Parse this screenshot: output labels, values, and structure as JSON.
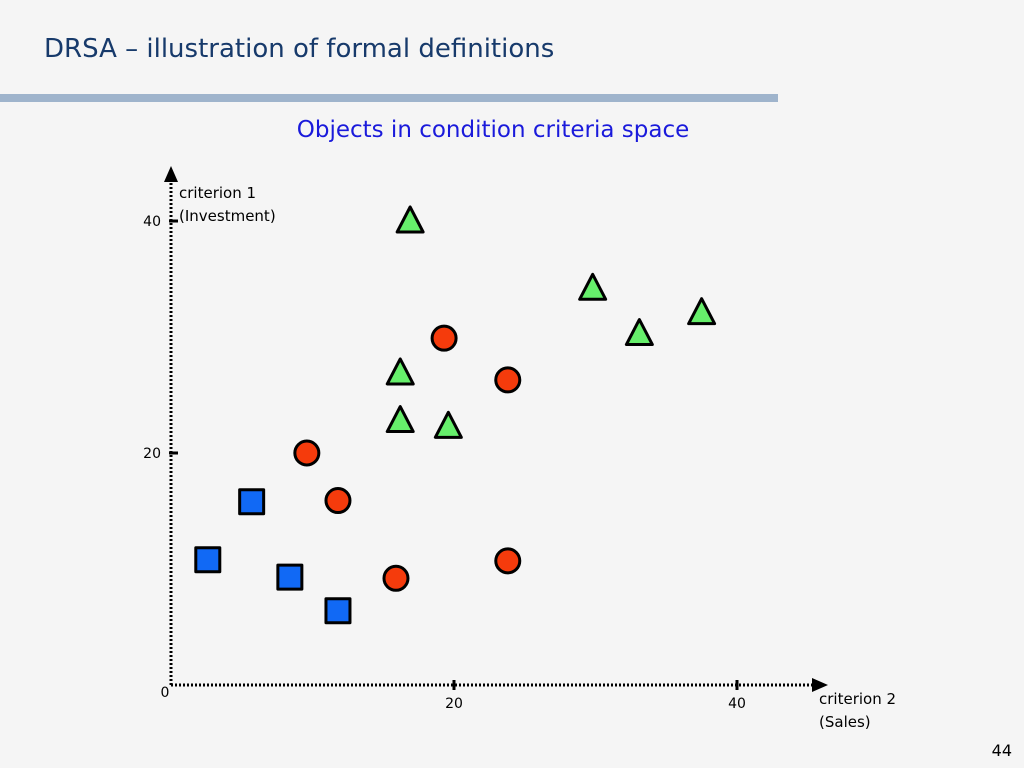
{
  "slide": {
    "title": "DRSA – illustration of formal definitions",
    "page_number": "44"
  },
  "colors": {
    "title": "#173a6b",
    "rule": "#9fb4cc",
    "chart_title": "#1a1adb",
    "square": "#1169f5",
    "circle": "#f53b0c",
    "triangle": "#66ef6b"
  },
  "chart_data": {
    "type": "scatter",
    "title": "Objects in condition criteria space",
    "xlabel": [
      "criterion 2",
      "(Sales)"
    ],
    "ylabel": [
      "criterion 1",
      "(Investment)"
    ],
    "origin_label": "0",
    "xticks": [
      {
        "value": 20,
        "label": "20"
      },
      {
        "value": 40,
        "label": "40"
      }
    ],
    "yticks": [
      {
        "value": 20,
        "label": "20"
      },
      {
        "value": 40,
        "label": "40"
      }
    ],
    "xlim": [
      0,
      44
    ],
    "ylim": [
      0,
      44
    ],
    "grid": false,
    "legend": "none",
    "series": [
      {
        "marker": "square",
        "color": "#1169f5",
        "points": [
          [
            2.6,
            10.8
          ],
          [
            5.7,
            15.8
          ],
          [
            8.4,
            9.3
          ],
          [
            11.8,
            6.4
          ]
        ]
      },
      {
        "marker": "circle",
        "color": "#f53b0c",
        "points": [
          [
            9.6,
            20.0
          ],
          [
            11.8,
            15.9
          ],
          [
            15.9,
            9.2
          ],
          [
            19.3,
            29.9
          ],
          [
            23.8,
            26.3
          ],
          [
            23.8,
            10.7
          ]
        ]
      },
      {
        "marker": "triangle",
        "color": "#66ef6b",
        "points": [
          [
            16.9,
            40.0
          ],
          [
            16.2,
            26.9
          ],
          [
            16.2,
            22.8
          ],
          [
            19.6,
            22.3
          ],
          [
            29.8,
            34.2
          ],
          [
            33.1,
            30.3
          ],
          [
            37.5,
            32.1
          ]
        ]
      }
    ]
  }
}
